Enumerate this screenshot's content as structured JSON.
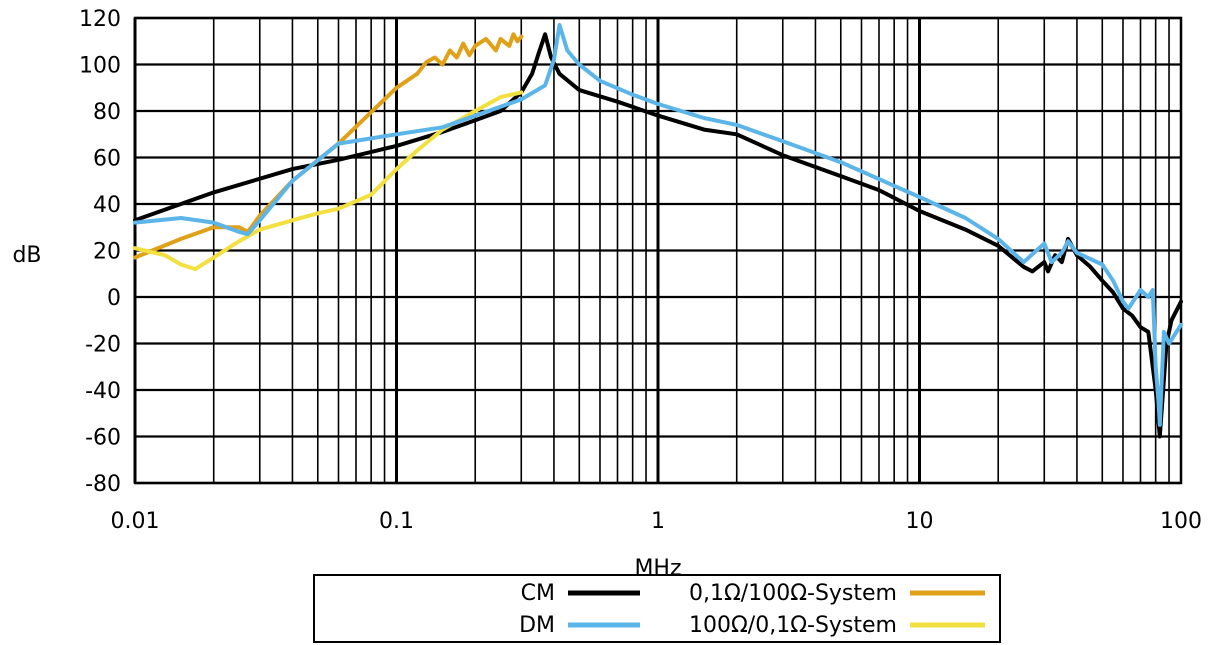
{
  "chart_data": {
    "type": "line",
    "xlabel": "MHz",
    "ylabel": "dB",
    "xscale": "log",
    "xlim": [
      0.01,
      100
    ],
    "ylim": [
      -80,
      120
    ],
    "xticks": [
      0.01,
      0.1,
      1,
      10,
      100
    ],
    "xtick_labels": [
      "0.01",
      "0.1",
      "1",
      "10",
      "100"
    ],
    "yticks": [
      -80,
      -60,
      -40,
      -20,
      0,
      20,
      40,
      60,
      80,
      100,
      120
    ],
    "grid": true,
    "legend_position": "bottom-center",
    "series": [
      {
        "name": "CM",
        "color": "#000000",
        "points": [
          [
            0.01,
            33
          ],
          [
            0.02,
            45
          ],
          [
            0.04,
            55
          ],
          [
            0.06,
            59
          ],
          [
            0.1,
            65
          ],
          [
            0.15,
            71
          ],
          [
            0.2,
            76
          ],
          [
            0.25,
            80
          ],
          [
            0.3,
            88
          ],
          [
            0.33,
            96
          ],
          [
            0.35,
            105
          ],
          [
            0.37,
            113
          ],
          [
            0.39,
            103
          ],
          [
            0.42,
            96
          ],
          [
            0.5,
            89
          ],
          [
            0.7,
            84
          ],
          [
            1,
            78
          ],
          [
            1.5,
            72
          ],
          [
            2,
            70
          ],
          [
            3,
            61
          ],
          [
            5,
            52
          ],
          [
            7,
            46
          ],
          [
            10,
            37
          ],
          [
            15,
            29
          ],
          [
            20,
            22
          ],
          [
            25,
            13
          ],
          [
            27,
            11
          ],
          [
            30,
            15
          ],
          [
            31,
            11
          ],
          [
            33,
            18
          ],
          [
            35,
            15
          ],
          [
            37,
            25
          ],
          [
            40,
            18
          ],
          [
            45,
            13
          ],
          [
            50,
            7
          ],
          [
            55,
            2
          ],
          [
            60,
            -5
          ],
          [
            65,
            -8
          ],
          [
            70,
            -13
          ],
          [
            75,
            -15
          ],
          [
            80,
            -40
          ],
          [
            83,
            -60
          ],
          [
            88,
            -20
          ],
          [
            92,
            -10
          ],
          [
            100,
            -2
          ]
        ]
      },
      {
        "name": "DM",
        "color": "#5bb5e8",
        "points": [
          [
            0.01,
            32
          ],
          [
            0.015,
            34
          ],
          [
            0.02,
            32
          ],
          [
            0.025,
            28
          ],
          [
            0.027,
            27
          ],
          [
            0.03,
            33
          ],
          [
            0.04,
            50
          ],
          [
            0.06,
            66
          ],
          [
            0.1,
            70
          ],
          [
            0.15,
            73
          ],
          [
            0.2,
            78
          ],
          [
            0.3,
            85
          ],
          [
            0.37,
            91
          ],
          [
            0.4,
            102
          ],
          [
            0.42,
            117
          ],
          [
            0.45,
            106
          ],
          [
            0.5,
            100
          ],
          [
            0.6,
            93
          ],
          [
            0.8,
            87
          ],
          [
            1,
            83
          ],
          [
            1.5,
            77
          ],
          [
            2,
            74
          ],
          [
            3,
            67
          ],
          [
            5,
            58
          ],
          [
            10,
            43
          ],
          [
            15,
            34
          ],
          [
            20,
            25
          ],
          [
            25,
            15
          ],
          [
            30,
            23
          ],
          [
            32,
            15
          ],
          [
            35,
            19
          ],
          [
            37,
            24
          ],
          [
            40,
            19
          ],
          [
            50,
            14
          ],
          [
            55,
            7
          ],
          [
            60,
            -2
          ],
          [
            63,
            -5
          ],
          [
            70,
            3
          ],
          [
            75,
            0
          ],
          [
            78,
            3
          ],
          [
            80,
            -30
          ],
          [
            82,
            -45
          ],
          [
            83,
            -55
          ],
          [
            86,
            -15
          ],
          [
            90,
            -20
          ],
          [
            100,
            -12
          ]
        ]
      },
      {
        "name": "0,1Ω/100Ω-System",
        "color": "#e0a018",
        "points": [
          [
            0.01,
            17
          ],
          [
            0.015,
            25
          ],
          [
            0.02,
            30
          ],
          [
            0.025,
            30
          ],
          [
            0.027,
            28
          ],
          [
            0.03,
            35
          ],
          [
            0.04,
            50
          ],
          [
            0.06,
            66
          ],
          [
            0.1,
            90
          ],
          [
            0.12,
            96
          ],
          [
            0.13,
            101
          ],
          [
            0.14,
            103
          ],
          [
            0.15,
            100
          ],
          [
            0.16,
            106
          ],
          [
            0.17,
            103
          ],
          [
            0.18,
            109
          ],
          [
            0.19,
            104
          ],
          [
            0.2,
            108
          ],
          [
            0.22,
            111
          ],
          [
            0.24,
            106
          ],
          [
            0.25,
            111
          ],
          [
            0.27,
            108
          ],
          [
            0.28,
            113
          ],
          [
            0.29,
            110
          ],
          [
            0.3,
            112
          ]
        ]
      },
      {
        "name": "100Ω/0,1Ω-System",
        "color": "#f2e040",
        "points": [
          [
            0.01,
            21
          ],
          [
            0.013,
            18
          ],
          [
            0.015,
            14
          ],
          [
            0.017,
            12
          ],
          [
            0.02,
            17
          ],
          [
            0.025,
            24
          ],
          [
            0.03,
            29
          ],
          [
            0.04,
            33
          ],
          [
            0.05,
            36
          ],
          [
            0.06,
            38
          ],
          [
            0.08,
            44
          ],
          [
            0.1,
            55
          ],
          [
            0.12,
            63
          ],
          [
            0.15,
            72
          ],
          [
            0.2,
            80
          ],
          [
            0.25,
            86
          ],
          [
            0.3,
            88
          ]
        ]
      }
    ]
  }
}
